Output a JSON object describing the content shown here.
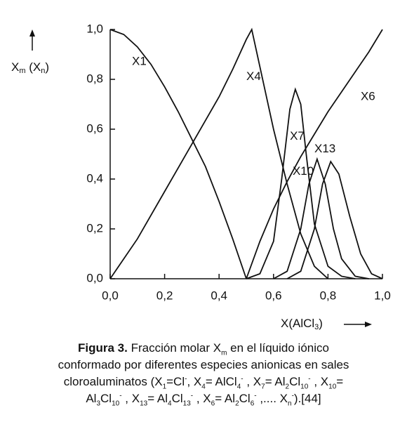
{
  "chart_data": {
    "type": "line",
    "y_label_parts": [
      "X",
      "m",
      " (X",
      "n",
      ")"
    ],
    "x_label_parts": [
      "X(AlCl",
      "3",
      ")"
    ],
    "xlim": [
      0,
      1
    ],
    "ylim": [
      0,
      1
    ],
    "xticks": [
      {
        "value": 0,
        "label": "0,0"
      },
      {
        "value": 0.2,
        "label": "0,2"
      },
      {
        "value": 0.4,
        "label": "0,4"
      },
      {
        "value": 0.6,
        "label": "0,6"
      },
      {
        "value": 0.8,
        "label": "0,8"
      },
      {
        "value": 1,
        "label": "1,0"
      }
    ],
    "yticks": [
      {
        "value": 0,
        "label": "0,0"
      },
      {
        "value": 0.2,
        "label": "0,2"
      },
      {
        "value": 0.4,
        "label": "0,4"
      },
      {
        "value": 0.6,
        "label": "0,6"
      },
      {
        "value": 0.8,
        "label": "0,8"
      },
      {
        "value": 1,
        "label": "1,0"
      }
    ],
    "color": "#111111",
    "series": [
      {
        "name": "X1",
        "x": [
          0,
          0.05,
          0.1,
          0.15,
          0.2,
          0.25,
          0.3,
          0.35,
          0.4,
          0.45,
          0.5
        ],
        "values": [
          1.0,
          0.98,
          0.93,
          0.86,
          0.77,
          0.67,
          0.56,
          0.45,
          0.31,
          0.16,
          0.0
        ]
      },
      {
        "name": "X4",
        "x": [
          0,
          0.1,
          0.2,
          0.3,
          0.4,
          0.45,
          0.5,
          0.52,
          0.55,
          0.6,
          0.65,
          0.7,
          0.75,
          0.8
        ],
        "values": [
          0,
          0.16,
          0.35,
          0.54,
          0.73,
          0.84,
          0.96,
          1.0,
          0.85,
          0.6,
          0.38,
          0.18,
          0.05,
          0.0
        ]
      },
      {
        "name": "X7",
        "x": [
          0.5,
          0.55,
          0.6,
          0.63,
          0.66,
          0.68,
          0.7,
          0.72,
          0.75,
          0.8,
          0.85,
          0.9
        ],
        "values": [
          0,
          0.02,
          0.15,
          0.4,
          0.68,
          0.76,
          0.7,
          0.5,
          0.22,
          0.05,
          0.01,
          0
        ]
      },
      {
        "name": "X10",
        "x": [
          0.6,
          0.65,
          0.7,
          0.73,
          0.76,
          0.79,
          0.82,
          0.85,
          0.9,
          0.95
        ],
        "values": [
          0,
          0.03,
          0.2,
          0.38,
          0.48,
          0.38,
          0.2,
          0.08,
          0.01,
          0
        ]
      },
      {
        "name": "X13",
        "x": [
          0.65,
          0.7,
          0.75,
          0.78,
          0.81,
          0.84,
          0.88,
          0.92,
          0.96,
          1.0
        ],
        "values": [
          0,
          0.03,
          0.2,
          0.38,
          0.47,
          0.42,
          0.25,
          0.1,
          0.02,
          0
        ]
      },
      {
        "name": "X6",
        "x": [
          0.5,
          0.55,
          0.6,
          0.65,
          0.7,
          0.75,
          0.8,
          0.85,
          0.9,
          0.95,
          1.0
        ],
        "values": [
          0,
          0.15,
          0.28,
          0.39,
          0.49,
          0.58,
          0.67,
          0.75,
          0.83,
          0.91,
          1.0
        ]
      }
    ]
  },
  "caption": [
    [
      {
        "t": "Figura 3.",
        "s": "b"
      },
      {
        "t": " Fracción molar X"
      },
      {
        "t": "m",
        "s": "sub"
      },
      {
        "t": " en el líquido iónico"
      }
    ],
    [
      {
        "t": "conformado por diferentes especies anionicas en sales"
      }
    ],
    [
      {
        "t": "cloroaluminatos (X"
      },
      {
        "t": "1",
        "s": "sub"
      },
      {
        "t": "=Cl"
      },
      {
        "t": "-",
        "s": "sup"
      },
      {
        "t": ", X"
      },
      {
        "t": "4",
        "s": "sub"
      },
      {
        "t": "= AlCl"
      },
      {
        "t": "4",
        "s": "sub"
      },
      {
        "t": "-",
        "s": "sup"
      },
      {
        "t": " , X"
      },
      {
        "t": "7",
        "s": "sub"
      },
      {
        "t": "= Al"
      },
      {
        "t": "2",
        "s": "sub"
      },
      {
        "t": "Cl"
      },
      {
        "t": "10",
        "s": "sub"
      },
      {
        "t": "-",
        "s": "sup"
      },
      {
        "t": " , X"
      },
      {
        "t": "10",
        "s": "sub"
      },
      {
        "t": "="
      }
    ],
    [
      {
        "t": "Al"
      },
      {
        "t": "3",
        "s": "sub"
      },
      {
        "t": "Cl"
      },
      {
        "t": "10",
        "s": "sub"
      },
      {
        "t": "-",
        "s": "sup"
      },
      {
        "t": " , X"
      },
      {
        "t": "13",
        "s": "sub"
      },
      {
        "t": "= Al"
      },
      {
        "t": "4",
        "s": "sub"
      },
      {
        "t": "Cl"
      },
      {
        "t": "13",
        "s": "sub"
      },
      {
        "t": "-",
        "s": "sup"
      },
      {
        "t": " , X"
      },
      {
        "t": "6",
        "s": "sub"
      },
      {
        "t": "= Al"
      },
      {
        "t": "2",
        "s": "sub"
      },
      {
        "t": "Cl"
      },
      {
        "t": "6",
        "s": "sub"
      },
      {
        "t": "-",
        "s": "sup"
      },
      {
        "t": " ,.... X"
      },
      {
        "t": "n",
        "s": "sub"
      },
      {
        "t": "-",
        "s": "sup"
      },
      {
        "t": ").[44]"
      }
    ]
  ]
}
